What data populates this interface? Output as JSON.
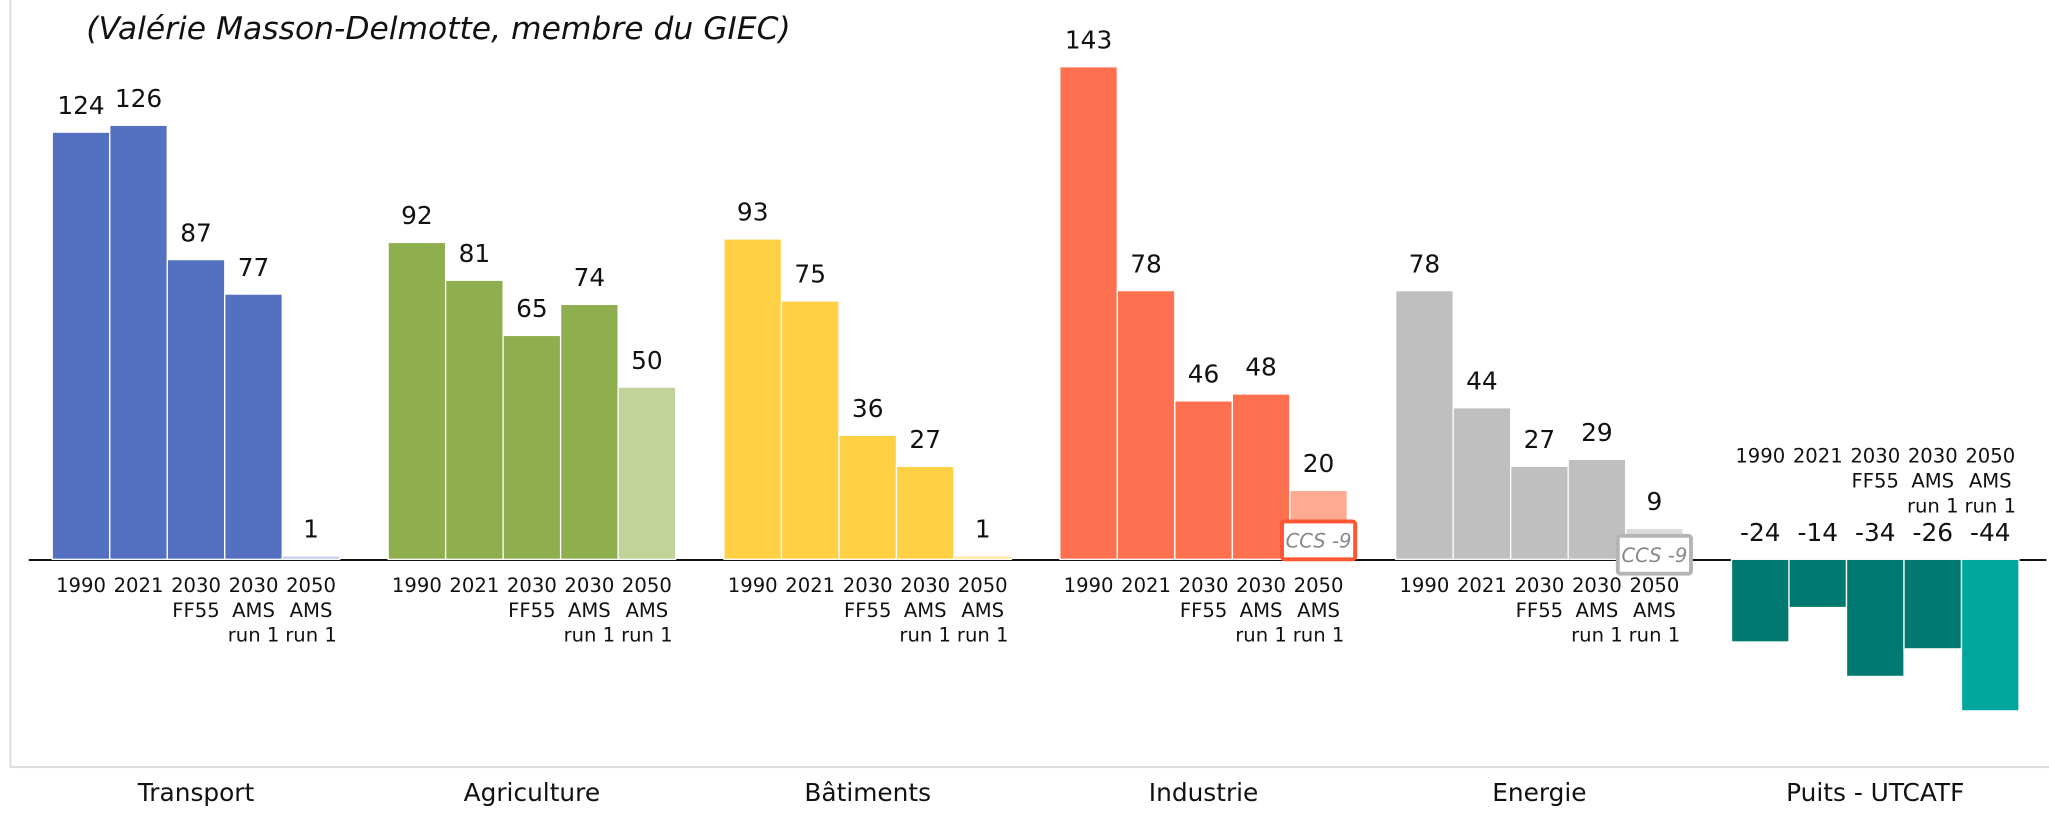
{
  "chart_data": {
    "type": "bar",
    "subtitle": "(Valérie Masson-Delmotte, membre du GIEC)",
    "groups": [
      {
        "name": "Transport",
        "labels": [
          [
            "1990"
          ],
          [
            "2021"
          ],
          [
            "2030",
            "FF55"
          ],
          [
            "2030",
            "AMS",
            "run 1"
          ],
          [
            "2050",
            "AMS",
            "run 1"
          ]
        ],
        "values": [
          124,
          126,
          87,
          77,
          1
        ],
        "colors": [
          "#5470c0",
          "#5470c0",
          "#5470c0",
          "#5470c0",
          "#c5cde9"
        ]
      },
      {
        "name": "Agriculture",
        "labels": [
          [
            "1990"
          ],
          [
            "2021"
          ],
          [
            "2030",
            "FF55"
          ],
          [
            "2030",
            "AMS",
            "run 1"
          ],
          [
            "2050",
            "AMS",
            "run 1"
          ]
        ],
        "values": [
          92,
          81,
          65,
          74,
          50
        ],
        "colors": [
          "#8faf4e",
          "#8faf4e",
          "#8faf4e",
          "#8faf4e",
          "#c2d39a"
        ]
      },
      {
        "name": "Bâtiments",
        "labels": [
          [
            "1990"
          ],
          [
            "2021"
          ],
          [
            "2030",
            "FF55"
          ],
          [
            "2030",
            "AMS",
            "run 1"
          ],
          [
            "2050",
            "AMS",
            "run 1"
          ]
        ],
        "values": [
          93,
          75,
          36,
          27,
          1
        ],
        "colors": [
          "#ffcf44",
          "#ffcf44",
          "#ffcf44",
          "#ffcf44",
          "#ffe7a0"
        ]
      },
      {
        "name": "Industrie",
        "labels": [
          [
            "1990"
          ],
          [
            "2021"
          ],
          [
            "2030",
            "FF55"
          ],
          [
            "2030",
            "AMS",
            "run 1"
          ],
          [
            "2050",
            "AMS",
            "run 1"
          ]
        ],
        "values": [
          143,
          78,
          46,
          48,
          20
        ],
        "colors": [
          "#ff7050",
          "#ff7050",
          "#ff7050",
          "#ff7050",
          "#ffa892"
        ],
        "annotation": "CCS -9",
        "annotation_color": "#ff5533"
      },
      {
        "name": "Energie",
        "labels": [
          [
            "1990"
          ],
          [
            "2021"
          ],
          [
            "2030",
            "FF55"
          ],
          [
            "2030",
            "AMS",
            "run 1"
          ],
          [
            "2050",
            "AMS",
            "run 1"
          ]
        ],
        "values": [
          78,
          44,
          27,
          29,
          9
        ],
        "colors": [
          "#bfbfbf",
          "#bfbfbf",
          "#bfbfbf",
          "#bfbfbf",
          "#dcdcdc"
        ],
        "annotation": "CCS -9",
        "annotation_color": "#b5b5b5"
      },
      {
        "name": "Puits - UTCATF",
        "labels": [
          [
            "1990"
          ],
          [
            "2021"
          ],
          [
            "2030",
            "FF55"
          ],
          [
            "2030",
            "AMS",
            "run 1"
          ],
          [
            "2050",
            "AMS",
            "run 1"
          ]
        ],
        "values": [
          -24,
          -14,
          -34,
          -26,
          -44
        ],
        "colors": [
          "#007a70",
          "#007a70",
          "#007a70",
          "#007a70",
          "#00a79d"
        ]
      }
    ]
  }
}
